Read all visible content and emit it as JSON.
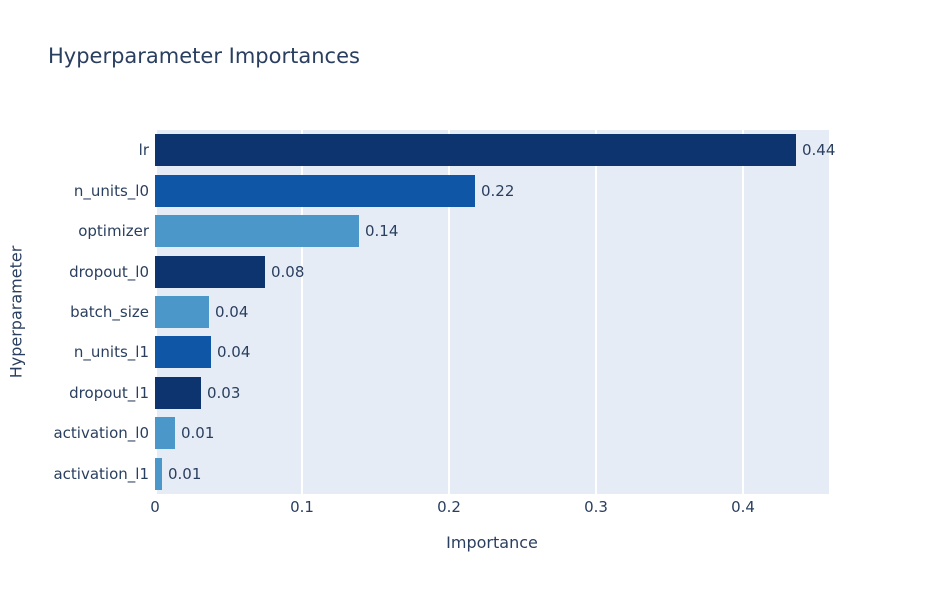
{
  "title": "Hyperparameter Importances",
  "chart_data": {
    "type": "bar",
    "orientation": "horizontal",
    "title": "Hyperparameter Importances",
    "xlabel": "Importance",
    "ylabel": "Hyperparameter",
    "categories": [
      "lr",
      "n_units_l0",
      "optimizer",
      "dropout_l0",
      "batch_size",
      "n_units_l1",
      "dropout_l1",
      "activation_l0",
      "activation_l1"
    ],
    "values": [
      0.44,
      0.22,
      0.14,
      0.08,
      0.04,
      0.04,
      0.03,
      0.01,
      0.01
    ],
    "value_labels": [
      "0.44",
      "0.22",
      "0.14",
      "0.08",
      "0.04",
      "0.04",
      "0.03",
      "0.01",
      "0.01"
    ],
    "fractions": [
      0.436,
      0.218,
      0.139,
      0.075,
      0.037,
      0.038,
      0.031,
      0.0135,
      0.005
    ],
    "bar_colors": [
      "#0e3470",
      "#0f57a6",
      "#4b97c9",
      "#0e3470",
      "#4b97c9",
      "#0f57a6",
      "#0e3470",
      "#4b97c9",
      "#4b97c9"
    ],
    "color_legend": {
      "dark_blue": "#0e3470",
      "medium_blue": "#0f57a6",
      "light_blue": "#4b97c9"
    },
    "xticks": [
      "0",
      "0.1",
      "0.2",
      "0.3",
      "0.4"
    ],
    "xtick_values": [
      0,
      0.1,
      0.2,
      0.3,
      0.4
    ],
    "xlim": [
      0,
      0.4585
    ],
    "grid": true,
    "legend": "none",
    "plot_bg": "#e5ecf6",
    "grid_color": "#ffffff",
    "text_color": "#2a3f5f"
  }
}
